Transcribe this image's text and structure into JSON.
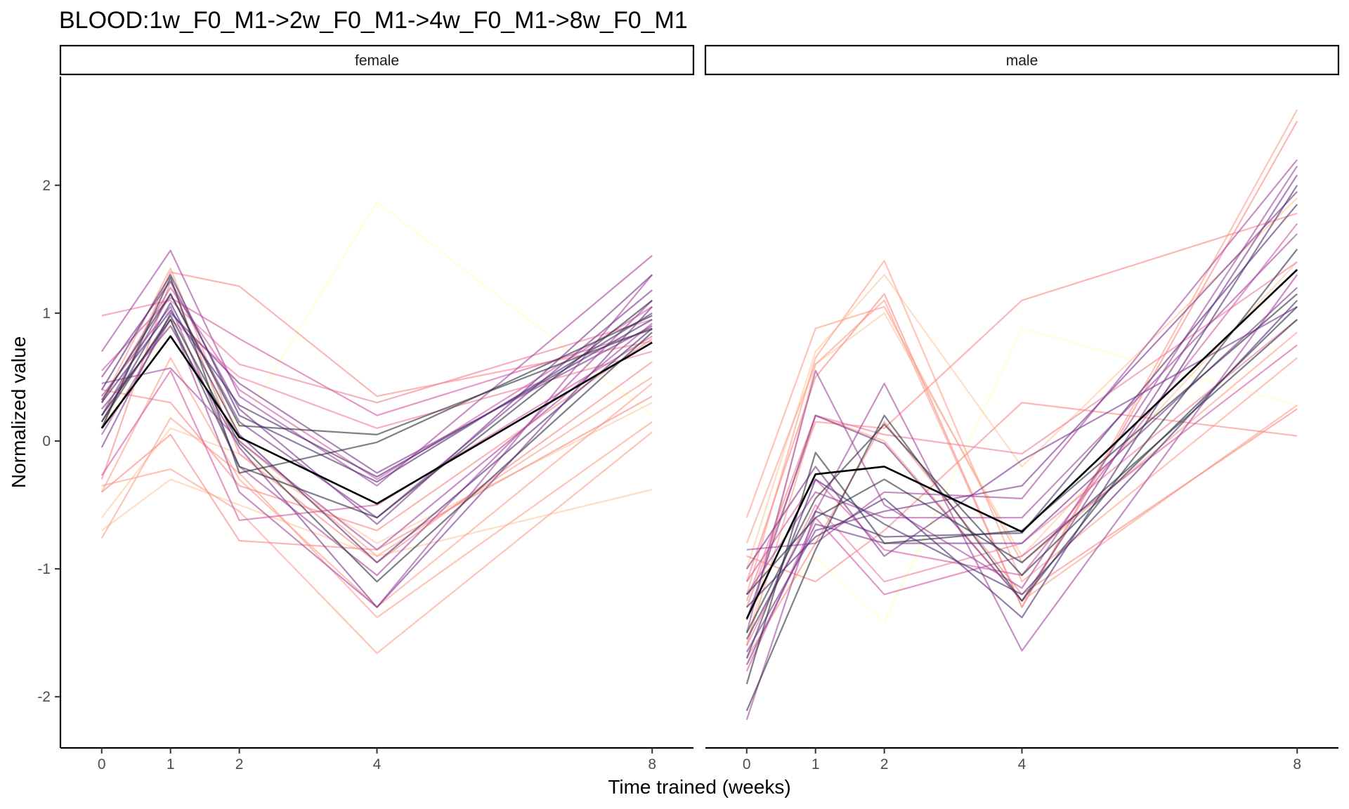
{
  "chart_data": {
    "type": "line",
    "title": "BLOOD:1w_F0_M1->2w_F0_M1->4w_F0_M1->8w_F0_M1",
    "xlabel": "Time trained (weeks)",
    "ylabel": "Normalized value",
    "x": [
      0,
      1,
      2,
      4,
      8
    ],
    "x_ticks": [
      "0",
      "1",
      "2",
      "4",
      "8"
    ],
    "y_ticks": [
      "-2",
      "-1",
      "0",
      "1",
      "2"
    ],
    "xlim": [
      -0.6,
      8.6
    ],
    "ylim": [
      -2.4,
      2.85
    ],
    "grid": false,
    "legend": "none",
    "facets": [
      "female",
      "male"
    ],
    "colors": {
      "mean_line": "#000000",
      "palette": [
        "#feffbf",
        "#fdc9a0",
        "#fca28b",
        "#f88a88",
        "#f07f9e",
        "#d45aa5",
        "#a44a9f",
        "#7c3990",
        "#4f2f75",
        "#303042"
      ]
    },
    "panels": [
      {
        "facet": "female",
        "mean": [
          0.1,
          0.82,
          0.03,
          -0.49,
          0.77
        ],
        "series": [
          {
            "values": [
              0.1,
              0.9,
              0.1,
              1.87,
              0.2
            ],
            "color": "#feffbf"
          },
          {
            "values": [
              -0.7,
              -0.3,
              -0.5,
              -0.9,
              -0.38
            ],
            "color": "#fdc9a0"
          },
          {
            "values": [
              -0.6,
              0.1,
              -0.1,
              -0.8,
              0.3
            ],
            "color": "#fdc9a0"
          },
          {
            "values": [
              -0.35,
              -0.22,
              -0.55,
              -1.66,
              0.07
            ],
            "color": "#fca28b"
          },
          {
            "values": [
              -0.76,
              0.18,
              -0.25,
              -1.38,
              0.15
            ],
            "color": "#fca28b"
          },
          {
            "values": [
              -0.4,
              0.65,
              -0.3,
              -1.3,
              0.45
            ],
            "color": "#fca28b"
          },
          {
            "values": [
              0.3,
              1.35,
              0.0,
              -0.9,
              0.5
            ],
            "color": "#fca28b"
          },
          {
            "values": [
              -0.4,
              0.05,
              -0.78,
              -0.85,
              0.35
            ],
            "color": "#f88a88"
          },
          {
            "values": [
              0.1,
              1.32,
              1.21,
              0.35,
              0.78
            ],
            "color": "#f88a88"
          },
          {
            "values": [
              -0.3,
              1.25,
              -0.1,
              -0.95,
              0.62
            ],
            "color": "#f88a88"
          },
          {
            "values": [
              0.4,
              0.3,
              -0.35,
              -0.7,
              0.8
            ],
            "color": "#f88a88"
          },
          {
            "values": [
              0.98,
              1.1,
              0.6,
              0.3,
              0.95
            ],
            "color": "#f07f9e"
          },
          {
            "values": [
              0.2,
              0.95,
              0.5,
              0.1,
              0.7
            ],
            "color": "#f07f9e"
          },
          {
            "values": [
              0.55,
              1.12,
              0.8,
              0.2,
              0.87
            ],
            "color": "#d45aa5"
          },
          {
            "values": [
              -0.27,
              0.55,
              -0.62,
              -0.5,
              0.82
            ],
            "color": "#d45aa5"
          },
          {
            "values": [
              0.3,
              1.2,
              0.4,
              -0.3,
              1.05
            ],
            "color": "#d45aa5"
          },
          {
            "values": [
              0.7,
              1.49,
              0.35,
              -0.35,
              1.45
            ],
            "color": "#a44a9f"
          },
          {
            "values": [
              0.05,
              0.95,
              -0.4,
              -1.3,
              1.3
            ],
            "color": "#a44a9f"
          },
          {
            "values": [
              0.45,
              0.57,
              0.0,
              -0.85,
              0.92
            ],
            "color": "#a44a9f"
          },
          {
            "values": [
              0.35,
              1.05,
              -0.2,
              -1.05,
              1.1
            ],
            "color": "#a44a9f"
          },
          {
            "values": [
              0.2,
              1.15,
              0.15,
              -0.6,
              1.18
            ],
            "color": "#7c3990"
          },
          {
            "values": [
              -0.05,
              1.0,
              0.45,
              -0.25,
              0.9
            ],
            "color": "#7c3990"
          },
          {
            "values": [
              0.5,
              1.25,
              0.25,
              -0.65,
              1.3
            ],
            "color": "#7c3990"
          },
          {
            "values": [
              0.25,
              0.9,
              -0.05,
              -1.3,
              1.05
            ],
            "color": "#7c3990"
          },
          {
            "values": [
              0.15,
              1.08,
              0.05,
              -0.95,
              0.88
            ],
            "color": "#4f2f75"
          },
          {
            "values": [
              0.4,
              1.3,
              0.2,
              -0.32,
              1.0
            ],
            "color": "#4f2f75"
          },
          {
            "values": [
              0.3,
              1.02,
              0.28,
              -0.28,
              0.95
            ],
            "color": "#4f2f75"
          },
          {
            "values": [
              0.1,
              1.28,
              -0.25,
              -0.01,
              0.98
            ],
            "color": "#303042"
          },
          {
            "values": [
              0.2,
              0.95,
              -0.2,
              -0.6,
              1.1
            ],
            "color": "#303042"
          },
          {
            "values": [
              0.15,
              0.98,
              -0.02,
              -1.1,
              0.85
            ],
            "color": "#303042"
          },
          {
            "values": [
              0.32,
              1.15,
              0.12,
              0.05,
              0.88
            ],
            "color": "#303042"
          }
        ]
      },
      {
        "facet": "male",
        "mean": [
          -1.39,
          -0.26,
          -0.2,
          -0.71,
          1.34
        ],
        "series": [
          {
            "values": [
              -1.5,
              -0.9,
              -1.42,
              0.88,
              0.28
            ],
            "color": "#feffbf"
          },
          {
            "values": [
              -1.0,
              0.7,
              1.3,
              -0.2,
              1.9
            ],
            "color": "#fdc9a0"
          },
          {
            "values": [
              -1.6,
              0.6,
              1.0,
              -0.9,
              1.4
            ],
            "color": "#fdc9a0"
          },
          {
            "values": [
              -0.6,
              0.88,
              1.05,
              -0.95,
              0.85
            ],
            "color": "#fca28b"
          },
          {
            "values": [
              -1.2,
              0.65,
              1.41,
              -1.1,
              0.65
            ],
            "color": "#fca28b"
          },
          {
            "values": [
              -0.8,
              0.6,
              1.1,
              -1.3,
              2.59
            ],
            "color": "#fca28b"
          },
          {
            "values": [
              -1.6,
              0.2,
              0.0,
              -1.25,
              0.28
            ],
            "color": "#fca28b"
          },
          {
            "values": [
              -1.3,
              0.15,
              0.1,
              1.1,
              1.78
            ],
            "color": "#f88a88"
          },
          {
            "values": [
              -1.1,
              0.5,
              1.15,
              -1.3,
              2.5
            ],
            "color": "#f88a88"
          },
          {
            "values": [
              -0.9,
              -1.1,
              -0.7,
              0.3,
              0.04
            ],
            "color": "#f88a88"
          },
          {
            "values": [
              -1.7,
              -0.8,
              0.15,
              -1.2,
              0.25
            ],
            "color": "#f88a88"
          },
          {
            "values": [
              -1.25,
              0.2,
              0.05,
              -0.1,
              1.4
            ],
            "color": "#f07f9e"
          },
          {
            "values": [
              -1.6,
              -0.5,
              -1.1,
              -0.8,
              0.95
            ],
            "color": "#f07f9e"
          },
          {
            "values": [
              -1.1,
              -0.3,
              -0.85,
              -1.05,
              1.7
            ],
            "color": "#d45aa5"
          },
          {
            "values": [
              -1.8,
              -0.6,
              -1.2,
              -0.9,
              0.75
            ],
            "color": "#d45aa5"
          },
          {
            "values": [
              -0.85,
              -0.8,
              -0.4,
              -0.45,
              2.2
            ],
            "color": "#a44a9f"
          },
          {
            "values": [
              -2.18,
              -0.55,
              0.45,
              -1.64,
              1.3
            ],
            "color": "#a44a9f"
          },
          {
            "values": [
              -1.5,
              0.55,
              -0.5,
              -1.15,
              2.15
            ],
            "color": "#a44a9f"
          },
          {
            "values": [
              -1.2,
              -0.4,
              -0.6,
              -0.6,
              1.62
            ],
            "color": "#a44a9f"
          },
          {
            "values": [
              -1.0,
              -0.2,
              -0.9,
              -0.15,
              1.05
            ],
            "color": "#7c3990"
          },
          {
            "values": [
              -1.65,
              -0.7,
              -0.55,
              -0.35,
              1.95
            ],
            "color": "#7c3990"
          },
          {
            "values": [
              -1.4,
              0.2,
              -0.02,
              -1.25,
              2.08
            ],
            "color": "#7c3990"
          },
          {
            "values": [
              -1.75,
              -0.65,
              -0.8,
              -0.8,
              1.2
            ],
            "color": "#7c3990"
          },
          {
            "values": [
              -1.3,
              -0.75,
              -0.45,
              -1.38,
              2.0
            ],
            "color": "#4f2f75"
          },
          {
            "values": [
              -1.55,
              -0.55,
              -0.75,
              -0.72,
              1.85
            ],
            "color": "#4f2f75"
          },
          {
            "values": [
              -1.7,
              -0.3,
              -0.65,
              -1.2,
              1.1
            ],
            "color": "#4f2f75"
          },
          {
            "values": [
              -2.11,
              -0.85,
              0.2,
              -1.25,
              1.5
            ],
            "color": "#303042"
          },
          {
            "values": [
              -1.9,
              -0.09,
              -0.8,
              -0.7,
              1.15
            ],
            "color": "#303042"
          },
          {
            "values": [
              -1.5,
              -0.45,
              0.13,
              -1.05,
              1.05
            ],
            "color": "#303042"
          },
          {
            "values": [
              -1.2,
              -0.6,
              -0.3,
              -0.95,
              0.95
            ],
            "color": "#303042"
          }
        ]
      }
    ]
  }
}
